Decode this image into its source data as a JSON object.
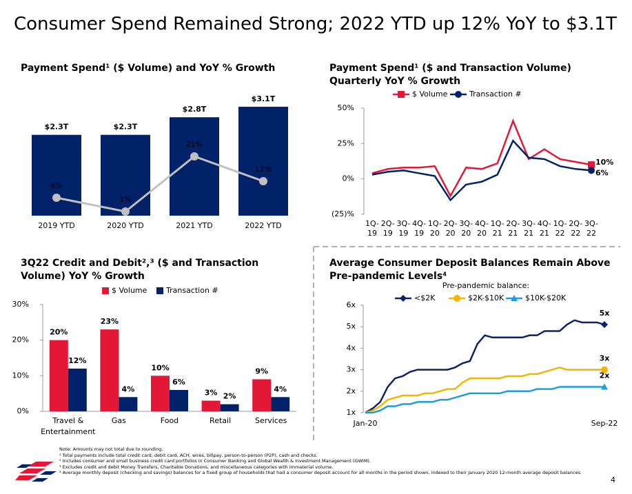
{
  "title": "Consumer Spend Remained Strong; 2022 YTD up 12% YoY to $3.1T",
  "chart_data": [
    {
      "type": "combo",
      "title": "Payment Spend¹ ($ Volume) and YoY % Growth",
      "categories": [
        "2019 YTD",
        "2020 YTD",
        "2021 YTD",
        "2022 YTD"
      ],
      "series": [
        {
          "type": "bar",
          "color": "#012169",
          "values": [
            2.3,
            2.3,
            2.8,
            3.1
          ],
          "value_labels": [
            "$2.3T",
            "$2.3T",
            "$2.8T",
            "$3.1T"
          ]
        },
        {
          "type": "line",
          "color": "#c0c0c0",
          "values": [
            6,
            1,
            21,
            12
          ],
          "value_labels": [
            "6%",
            "1%",
            "21%",
            "12%"
          ]
        }
      ]
    },
    {
      "type": "line",
      "title": "Payment Spend¹ ($ and Transaction Volume) Quarterly YoY % Growth",
      "categories": [
        "1Q-19",
        "2Q-19",
        "3Q-19",
        "4Q-19",
        "1Q-20",
        "2Q-20",
        "3Q-20",
        "4Q-20",
        "1Q-21",
        "2Q-21",
        "3Q-21",
        "4Q-21",
        "1Q-22",
        "2Q-22",
        "3Q-22"
      ],
      "series": [
        {
          "name": "$ Volume",
          "color": "#e31837",
          "marker": "square",
          "values": [
            4,
            7,
            8,
            8,
            9,
            -12,
            8,
            7,
            11,
            41,
            14,
            21,
            14,
            12,
            10
          ],
          "value_labels": [
            null,
            null,
            null,
            null,
            null,
            null,
            null,
            null,
            null,
            null,
            null,
            null,
            null,
            null,
            "10%"
          ]
        },
        {
          "name": "Transaction #",
          "color": "#012169",
          "marker": "circle",
          "values": [
            3,
            5,
            6,
            4,
            2,
            -15,
            -4,
            -2,
            3,
            27,
            15,
            14,
            9,
            7,
            6
          ],
          "value_labels": [
            null,
            null,
            null,
            null,
            null,
            null,
            null,
            null,
            null,
            null,
            null,
            null,
            null,
            null,
            "6%"
          ]
        }
      ],
      "ylim": [
        -25,
        50
      ],
      "yticks": [
        {
          "value": -25,
          "label": "(25)%"
        },
        {
          "value": 0,
          "label": "0%"
        },
        {
          "value": 25,
          "label": "25%"
        },
        {
          "value": 50,
          "label": "50%"
        }
      ],
      "grid": false,
      "legend": "top"
    },
    {
      "type": "bar",
      "title": "3Q22 Credit and Debit²,³ ($ and Transaction Volume) YoY % Growth",
      "categories": [
        "Travel & Entertainment",
        "Gas",
        "Food",
        "Retail",
        "Services"
      ],
      "series": [
        {
          "name": "$ Volume",
          "color": "#e31837",
          "values": [
            20,
            23,
            10,
            3,
            9
          ],
          "value_labels": [
            "20%",
            "23%",
            "10%",
            "3%",
            "9%"
          ]
        },
        {
          "name": "Transaction #",
          "color": "#012169",
          "values": [
            12,
            4,
            6,
            2,
            4
          ],
          "value_labels": [
            "12%",
            "4%",
            "6%",
            "2%",
            "4%"
          ]
        }
      ],
      "ylim": [
        0,
        30
      ],
      "yticks": [
        {
          "value": 0,
          "label": "0%"
        },
        {
          "value": 10,
          "label": "10%"
        },
        {
          "value": 20,
          "label": "20%"
        },
        {
          "value": 30,
          "label": "30%"
        }
      ],
      "grid": false,
      "legend": "top"
    },
    {
      "type": "line",
      "title": "Average Consumer Deposit Balances Remain Above Pre-pandemic Levels⁴",
      "legend_title": "Pre-pandemic balance:",
      "categories": [
        "Jan-20",
        null,
        null,
        null,
        null,
        null,
        null,
        null,
        null,
        null,
        null,
        null,
        null,
        null,
        null,
        null,
        null,
        null,
        null,
        null,
        null,
        null,
        null,
        null,
        null,
        null,
        null,
        null,
        null,
        null,
        null,
        null,
        "Sep-22"
      ],
      "series": [
        {
          "name": "<$2K",
          "color": "#0b2265",
          "marker": "diamond",
          "values": [
            1.0,
            1.2,
            1.5,
            2.2,
            2.6,
            2.7,
            2.9,
            3.0,
            3.0,
            3.0,
            3.0,
            3.0,
            3.1,
            3.3,
            3.4,
            4.2,
            4.6,
            4.5,
            4.5,
            4.5,
            4.5,
            4.5,
            4.6,
            4.6,
            4.8,
            4.8,
            4.8,
            5.1,
            5.3,
            5.2,
            5.2,
            5.2,
            5.1
          ],
          "value_labels": [
            null,
            null,
            null,
            null,
            null,
            null,
            null,
            null,
            null,
            null,
            null,
            null,
            null,
            null,
            null,
            null,
            null,
            null,
            null,
            null,
            null,
            null,
            null,
            null,
            null,
            null,
            null,
            null,
            null,
            null,
            null,
            null,
            "5x"
          ]
        },
        {
          "name": "$2K-$10K",
          "color": "#f5b400",
          "marker": "circle",
          "values": [
            1.0,
            1.1,
            1.3,
            1.6,
            1.7,
            1.8,
            1.8,
            1.8,
            1.9,
            1.9,
            2.0,
            2.1,
            2.1,
            2.4,
            2.6,
            2.6,
            2.6,
            2.6,
            2.6,
            2.7,
            2.7,
            2.7,
            2.8,
            2.8,
            2.9,
            3.0,
            3.1,
            3.0,
            3.0,
            3.0,
            3.0,
            3.0,
            3.0
          ],
          "value_labels": [
            null,
            null,
            null,
            null,
            null,
            null,
            null,
            null,
            null,
            null,
            null,
            null,
            null,
            null,
            null,
            null,
            null,
            null,
            null,
            null,
            null,
            null,
            null,
            null,
            null,
            null,
            null,
            null,
            null,
            null,
            null,
            null,
            "3x"
          ]
        },
        {
          "name": "$10K-$20K",
          "color": "#1f9bde",
          "marker": "triangle",
          "values": [
            1.0,
            1.0,
            1.1,
            1.3,
            1.3,
            1.4,
            1.4,
            1.5,
            1.5,
            1.5,
            1.6,
            1.6,
            1.7,
            1.8,
            1.9,
            1.9,
            1.9,
            1.9,
            1.9,
            2.0,
            2.0,
            2.0,
            2.0,
            2.1,
            2.1,
            2.1,
            2.2,
            2.2,
            2.2,
            2.2,
            2.2,
            2.2,
            2.2
          ],
          "value_labels": [
            null,
            null,
            null,
            null,
            null,
            null,
            null,
            null,
            null,
            null,
            null,
            null,
            null,
            null,
            null,
            null,
            null,
            null,
            null,
            null,
            null,
            null,
            null,
            null,
            null,
            null,
            null,
            null,
            null,
            null,
            null,
            null,
            "2x"
          ]
        }
      ],
      "ylim": [
        1,
        6
      ],
      "yticks": [
        {
          "value": 1,
          "label": "1x"
        },
        {
          "value": 2,
          "label": "2x"
        },
        {
          "value": 3,
          "label": "3x"
        },
        {
          "value": 4,
          "label": "4x"
        },
        {
          "value": 5,
          "label": "5x"
        },
        {
          "value": 6,
          "label": "6x"
        }
      ],
      "grid": false,
      "legend": "top"
    }
  ],
  "notes": [
    "Note: Amounts may not total due to rounding.",
    "¹ Total payments include total credit card, debit card, ACH, wires, billpay, person-to-person (P2P), cash and checks.",
    "² Includes consumer and small business credit card portfolios in Consumer Banking and Global Wealth & Investment Management (GWIM).",
    "³ Excludes credit and debit Money Transfers, Charitable Donations, and miscellaneous categories with immaterial volume.",
    "⁴ Average monthly deposit (checking and savings) balances for a fixed group of households that had a consumer deposit account for all months in the period shown, indexed to their January 2020 12-month average deposit balances."
  ],
  "page_number": "4"
}
